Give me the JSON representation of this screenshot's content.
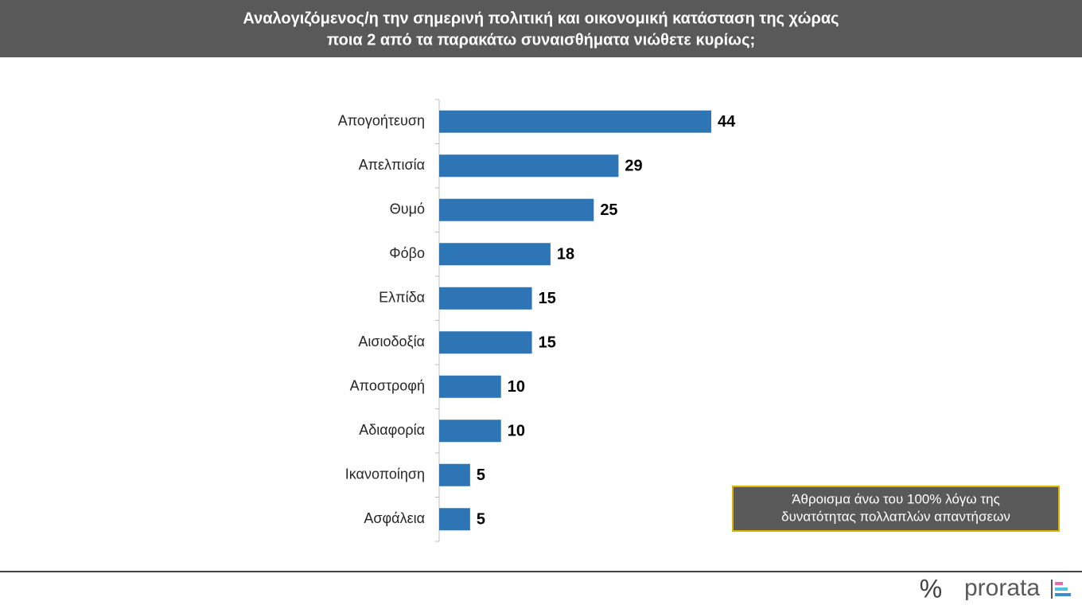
{
  "chart_data": {
    "type": "bar",
    "orientation": "horizontal",
    "title": [
      "Αναλογιζόμενος/η την σημερινή πολιτική και οικονομική κατάσταση της χώρας",
      "ποια 2 από τα παρακάτω συναισθήματα νιώθετε κυρίως;"
    ],
    "categories": [
      "Απογοήτευση",
      "Απελπισία",
      "Θυμό",
      "Φόβο",
      "Ελπίδα",
      "Αισιοδοξία",
      "Αποστροφή",
      "Αδιαφορία",
      "Ικανοποίηση",
      "Ασφάλεια"
    ],
    "values": [
      44,
      29,
      25,
      18,
      15,
      15,
      10,
      10,
      5,
      5
    ],
    "color": "#2e75b6",
    "annotation": [
      "Άθροισμα άνω του 100% λόγω της",
      "δυνατότητας πολλαπλών απαντήσεων"
    ]
  },
  "logo": {
    "symbol": "%",
    "name": "prorata"
  }
}
